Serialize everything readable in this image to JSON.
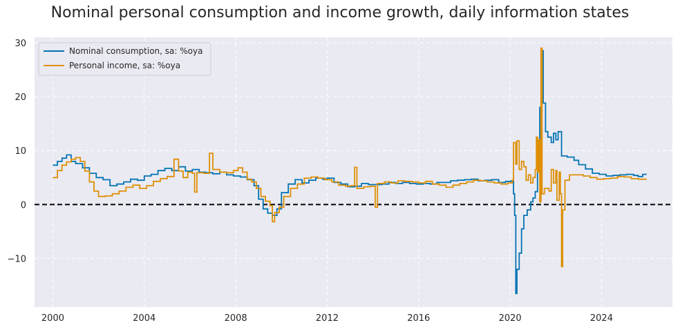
{
  "chart_data": {
    "type": "line",
    "title": "Nominal personal consumption and income growth, daily information states",
    "xlabel": "",
    "ylabel": "",
    "xlim": [
      1999.2,
      2027.1
    ],
    "ylim": [
      -19,
      31
    ],
    "x_ticks": [
      2000,
      2004,
      2008,
      2012,
      2016,
      2020,
      2024
    ],
    "x_tick_labels": [
      "2000",
      "2004",
      "2008",
      "2012",
      "2016",
      "2020",
      "2024"
    ],
    "y_ticks": [
      -10,
      0,
      10,
      20,
      30
    ],
    "y_tick_labels": [
      "−10",
      "0",
      "10",
      "20",
      "30"
    ],
    "grid": true,
    "legend_position": "top-left",
    "reference_line": {
      "y": 0,
      "style": "dashed",
      "color": "#000000"
    },
    "series": [
      {
        "name": "Nominal consumption, sa: %oya",
        "color": "#0173b2",
        "points": [
          [
            2000.0,
            7.3
          ],
          [
            2000.2,
            8.0
          ],
          [
            2000.4,
            8.6
          ],
          [
            2000.6,
            9.2
          ],
          [
            2000.8,
            8.0
          ],
          [
            2001.0,
            7.6
          ],
          [
            2001.3,
            6.8
          ],
          [
            2001.6,
            5.8
          ],
          [
            2001.9,
            5.0
          ],
          [
            2002.2,
            4.6
          ],
          [
            2002.5,
            3.5
          ],
          [
            2002.8,
            3.8
          ],
          [
            2003.1,
            4.2
          ],
          [
            2003.4,
            4.7
          ],
          [
            2003.7,
            4.5
          ],
          [
            2004.0,
            5.3
          ],
          [
            2004.3,
            5.6
          ],
          [
            2004.6,
            6.3
          ],
          [
            2004.9,
            6.7
          ],
          [
            2005.2,
            6.3
          ],
          [
            2005.5,
            7.0
          ],
          [
            2005.8,
            6.2
          ],
          [
            2006.1,
            6.5
          ],
          [
            2006.4,
            6.0
          ],
          [
            2006.7,
            5.9
          ],
          [
            2007.0,
            5.7
          ],
          [
            2007.3,
            6.0
          ],
          [
            2007.6,
            5.5
          ],
          [
            2007.9,
            5.3
          ],
          [
            2008.2,
            5.1
          ],
          [
            2008.5,
            4.6
          ],
          [
            2008.8,
            3.5
          ],
          [
            2009.0,
            1.0
          ],
          [
            2009.2,
            -0.8
          ],
          [
            2009.4,
            -1.6
          ],
          [
            2009.6,
            -2.0
          ],
          [
            2009.8,
            -0.8
          ],
          [
            2010.0,
            2.2
          ],
          [
            2010.3,
            3.8
          ],
          [
            2010.6,
            4.6
          ],
          [
            2010.9,
            4.0
          ],
          [
            2011.2,
            4.5
          ],
          [
            2011.5,
            4.9
          ],
          [
            2011.8,
            4.7
          ],
          [
            2012.0,
            4.9
          ],
          [
            2012.3,
            4.1
          ],
          [
            2012.6,
            3.8
          ],
          [
            2012.9,
            3.3
          ],
          [
            2013.2,
            3.4
          ],
          [
            2013.5,
            3.9
          ],
          [
            2013.8,
            3.7
          ],
          [
            2014.1,
            3.7
          ],
          [
            2014.4,
            3.8
          ],
          [
            2014.7,
            4.1
          ],
          [
            2015.0,
            3.9
          ],
          [
            2015.3,
            4.1
          ],
          [
            2015.6,
            3.9
          ],
          [
            2015.9,
            3.8
          ],
          [
            2016.2,
            3.9
          ],
          [
            2016.5,
            3.8
          ],
          [
            2016.8,
            4.1
          ],
          [
            2017.1,
            4.1
          ],
          [
            2017.4,
            4.4
          ],
          [
            2017.7,
            4.5
          ],
          [
            2018.0,
            4.6
          ],
          [
            2018.3,
            4.7
          ],
          [
            2018.6,
            4.4
          ],
          [
            2018.9,
            4.5
          ],
          [
            2019.2,
            4.6
          ],
          [
            2019.5,
            4.1
          ],
          [
            2019.8,
            4.3
          ],
          [
            2020.05,
            4.4
          ],
          [
            2020.15,
            2.0
          ],
          [
            2020.2,
            -2.0
          ],
          [
            2020.25,
            -16.5
          ],
          [
            2020.3,
            -12.0
          ],
          [
            2020.4,
            -9.0
          ],
          [
            2020.5,
            -4.5
          ],
          [
            2020.6,
            -2.0
          ],
          [
            2020.75,
            -1.0
          ],
          [
            2020.9,
            0.5
          ],
          [
            2021.0,
            1.2
          ],
          [
            2021.1,
            2.4
          ],
          [
            2021.2,
            9.5
          ],
          [
            2021.3,
            18.0
          ],
          [
            2021.38,
            28.5
          ],
          [
            2021.45,
            18.8
          ],
          [
            2021.55,
            13.5
          ],
          [
            2021.65,
            12.5
          ],
          [
            2021.8,
            11.5
          ],
          [
            2021.9,
            13.2
          ],
          [
            2022.0,
            12.0
          ],
          [
            2022.1,
            13.5
          ],
          [
            2022.25,
            9.0
          ],
          [
            2022.5,
            8.8
          ],
          [
            2022.8,
            8.2
          ],
          [
            2023.0,
            7.4
          ],
          [
            2023.3,
            6.6
          ],
          [
            2023.6,
            5.8
          ],
          [
            2023.9,
            5.6
          ],
          [
            2024.2,
            5.3
          ],
          [
            2024.5,
            5.4
          ],
          [
            2024.8,
            5.5
          ],
          [
            2025.1,
            5.6
          ],
          [
            2025.4,
            5.4
          ],
          [
            2025.6,
            5.2
          ],
          [
            2025.8,
            5.6
          ],
          [
            2025.95,
            5.5
          ]
        ]
      },
      {
        "name": "Personal income, sa: %oya",
        "color": "#de8f05",
        "points": [
          [
            2000.0,
            5.0
          ],
          [
            2000.2,
            6.3
          ],
          [
            2000.4,
            7.3
          ],
          [
            2000.6,
            7.9
          ],
          [
            2000.8,
            8.4
          ],
          [
            2001.0,
            8.7
          ],
          [
            2001.2,
            8.0
          ],
          [
            2001.4,
            6.2
          ],
          [
            2001.6,
            4.2
          ],
          [
            2001.8,
            2.5
          ],
          [
            2002.0,
            1.5
          ],
          [
            2002.3,
            1.6
          ],
          [
            2002.6,
            2.0
          ],
          [
            2002.9,
            2.5
          ],
          [
            2003.2,
            3.2
          ],
          [
            2003.5,
            3.6
          ],
          [
            2003.8,
            3.0
          ],
          [
            2004.1,
            3.5
          ],
          [
            2004.4,
            4.3
          ],
          [
            2004.7,
            4.8
          ],
          [
            2005.0,
            5.2
          ],
          [
            2005.3,
            8.4
          ],
          [
            2005.5,
            6.2
          ],
          [
            2005.7,
            5.0
          ],
          [
            2005.9,
            6.0
          ],
          [
            2006.1,
            5.8
          ],
          [
            2006.2,
            2.3
          ],
          [
            2006.3,
            5.9
          ],
          [
            2006.6,
            5.8
          ],
          [
            2006.85,
            9.5
          ],
          [
            2007.0,
            6.5
          ],
          [
            2007.3,
            6.0
          ],
          [
            2007.6,
            5.9
          ],
          [
            2007.9,
            6.3
          ],
          [
            2008.1,
            6.8
          ],
          [
            2008.3,
            6.0
          ],
          [
            2008.5,
            4.7
          ],
          [
            2008.7,
            4.2
          ],
          [
            2008.9,
            3.0
          ],
          [
            2009.1,
            1.5
          ],
          [
            2009.3,
            0.6
          ],
          [
            2009.5,
            -0.2
          ],
          [
            2009.6,
            -3.2
          ],
          [
            2009.7,
            -1.5
          ],
          [
            2009.9,
            -0.5
          ],
          [
            2010.1,
            1.5
          ],
          [
            2010.4,
            3.0
          ],
          [
            2010.7,
            3.8
          ],
          [
            2011.0,
            4.9
          ],
          [
            2011.3,
            5.1
          ],
          [
            2011.6,
            4.9
          ],
          [
            2011.9,
            4.6
          ],
          [
            2012.2,
            4.2
          ],
          [
            2012.5,
            3.6
          ],
          [
            2012.8,
            3.4
          ],
          [
            2013.0,
            3.5
          ],
          [
            2013.2,
            6.9
          ],
          [
            2013.3,
            3.0
          ],
          [
            2013.6,
            3.3
          ],
          [
            2013.9,
            3.4
          ],
          [
            2014.1,
            -0.5
          ],
          [
            2014.2,
            3.9
          ],
          [
            2014.5,
            4.2
          ],
          [
            2014.8,
            4.0
          ],
          [
            2015.1,
            4.4
          ],
          [
            2015.4,
            4.3
          ],
          [
            2015.7,
            4.2
          ],
          [
            2016.0,
            4.0
          ],
          [
            2016.3,
            4.3
          ],
          [
            2016.6,
            3.8
          ],
          [
            2016.9,
            3.6
          ],
          [
            2017.2,
            3.2
          ],
          [
            2017.5,
            3.6
          ],
          [
            2017.8,
            3.9
          ],
          [
            2018.1,
            4.2
          ],
          [
            2018.4,
            4.5
          ],
          [
            2018.7,
            4.4
          ],
          [
            2019.0,
            4.2
          ],
          [
            2019.3,
            4.0
          ],
          [
            2019.6,
            3.8
          ],
          [
            2019.9,
            4.0
          ],
          [
            2020.1,
            4.5
          ],
          [
            2020.15,
            11.5
          ],
          [
            2020.25,
            7.5
          ],
          [
            2020.3,
            11.8
          ],
          [
            2020.4,
            6.5
          ],
          [
            2020.5,
            8.0
          ],
          [
            2020.6,
            7.0
          ],
          [
            2020.7,
            4.5
          ],
          [
            2020.8,
            5.5
          ],
          [
            2020.9,
            4.0
          ],
          [
            2021.0,
            5.0
          ],
          [
            2021.1,
            6.5
          ],
          [
            2021.15,
            12.5
          ],
          [
            2021.2,
            6.0
          ],
          [
            2021.25,
            12.0
          ],
          [
            2021.3,
            0.5
          ],
          [
            2021.35,
            29.0
          ],
          [
            2021.4,
            2.0
          ],
          [
            2021.5,
            3.0
          ],
          [
            2021.7,
            2.5
          ],
          [
            2021.8,
            6.5
          ],
          [
            2021.9,
            4.0
          ],
          [
            2022.0,
            6.3
          ],
          [
            2022.05,
            0.8
          ],
          [
            2022.15,
            6.0
          ],
          [
            2022.2,
            2.0
          ],
          [
            2022.25,
            -11.5
          ],
          [
            2022.3,
            -1.0
          ],
          [
            2022.4,
            4.5
          ],
          [
            2022.6,
            5.5
          ],
          [
            2022.9,
            5.5
          ],
          [
            2023.2,
            5.3
          ],
          [
            2023.5,
            5.0
          ],
          [
            2023.8,
            4.7
          ],
          [
            2024.1,
            4.8
          ],
          [
            2024.4,
            4.9
          ],
          [
            2024.7,
            5.2
          ],
          [
            2025.0,
            5.1
          ],
          [
            2025.3,
            4.8
          ],
          [
            2025.6,
            4.7
          ],
          [
            2025.95,
            4.8
          ]
        ]
      }
    ]
  }
}
